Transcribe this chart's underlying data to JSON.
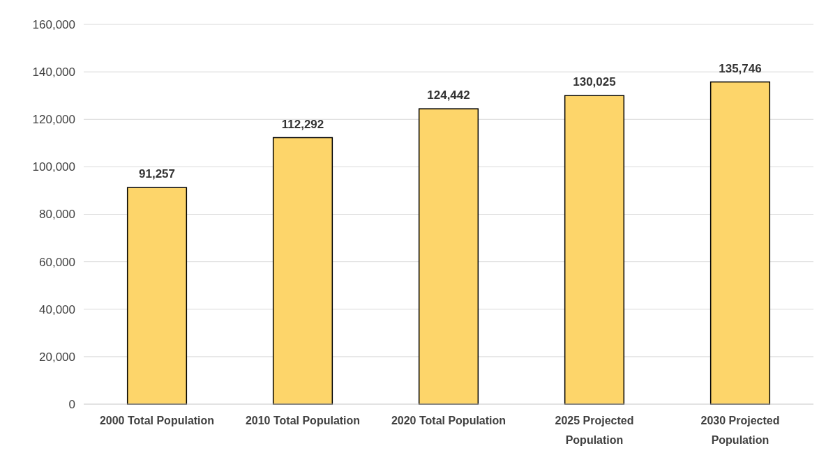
{
  "chart_data": {
    "type": "bar",
    "categories": [
      "2000 Total Population",
      "2010 Total Population",
      "2020 Total Population",
      "2025 Projected Population",
      "2030 Projected Population"
    ],
    "values": [
      91257,
      112292,
      124442,
      130025,
      135746
    ],
    "color": "#fdd56a",
    "ylim": [
      0,
      160000
    ],
    "yticks": [
      {
        "value": 0,
        "label": "0"
      },
      {
        "value": 20000,
        "label": "20,000"
      },
      {
        "value": 40000,
        "label": "40,000"
      },
      {
        "value": 60000,
        "label": "60,000"
      },
      {
        "value": 80000,
        "label": "80,000"
      },
      {
        "value": 100000,
        "label": "100,000"
      },
      {
        "value": 120000,
        "label": "120,000"
      },
      {
        "value": 140000,
        "label": "140,000"
      },
      {
        "value": 160000,
        "label": "160,000"
      }
    ],
    "value_labels": [
      "91,257",
      "112,292",
      "124,442",
      "130,025",
      "135,746"
    ],
    "grid": "y"
  }
}
